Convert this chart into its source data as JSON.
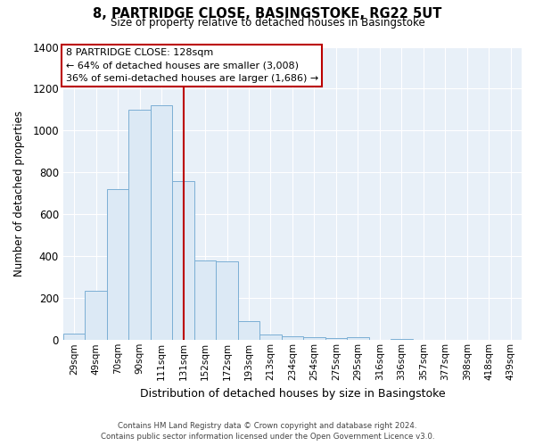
{
  "title": "8, PARTRIDGE CLOSE, BASINGSTOKE, RG22 5UT",
  "subtitle": "Size of property relative to detached houses in Basingstoke",
  "xlabel": "Distribution of detached houses by size in Basingstoke",
  "ylabel": "Number of detached properties",
  "bar_labels": [
    "29sqm",
    "49sqm",
    "70sqm",
    "90sqm",
    "111sqm",
    "131sqm",
    "152sqm",
    "172sqm",
    "193sqm",
    "213sqm",
    "234sqm",
    "254sqm",
    "275sqm",
    "295sqm",
    "316sqm",
    "336sqm",
    "357sqm",
    "377sqm",
    "398sqm",
    "418sqm",
    "439sqm"
  ],
  "bar_values": [
    30,
    235,
    720,
    1100,
    1120,
    760,
    380,
    375,
    90,
    25,
    20,
    15,
    10,
    15,
    0,
    5,
    0,
    0,
    0,
    0,
    0
  ],
  "bar_color": "#dce9f5",
  "bar_edge_color": "#7bafd4",
  "vline_x_idx": 5,
  "vline_color": "#bb0000",
  "ylim": [
    0,
    1400
  ],
  "yticks": [
    0,
    200,
    400,
    600,
    800,
    1000,
    1200,
    1400
  ],
  "annotation_title": "8 PARTRIDGE CLOSE: 128sqm",
  "annotation_line1": "← 64% of detached houses are smaller (3,008)",
  "annotation_line2": "36% of semi-detached houses are larger (1,686) →",
  "footnote1": "Contains HM Land Registry data © Crown copyright and database right 2024.",
  "footnote2": "Contains public sector information licensed under the Open Government Licence v3.0.",
  "annotation_box_facecolor": "#ffffff",
  "annotation_box_edgecolor": "#bb0000",
  "plot_bg_color": "#e8f0f8",
  "grid_color": "#ffffff"
}
